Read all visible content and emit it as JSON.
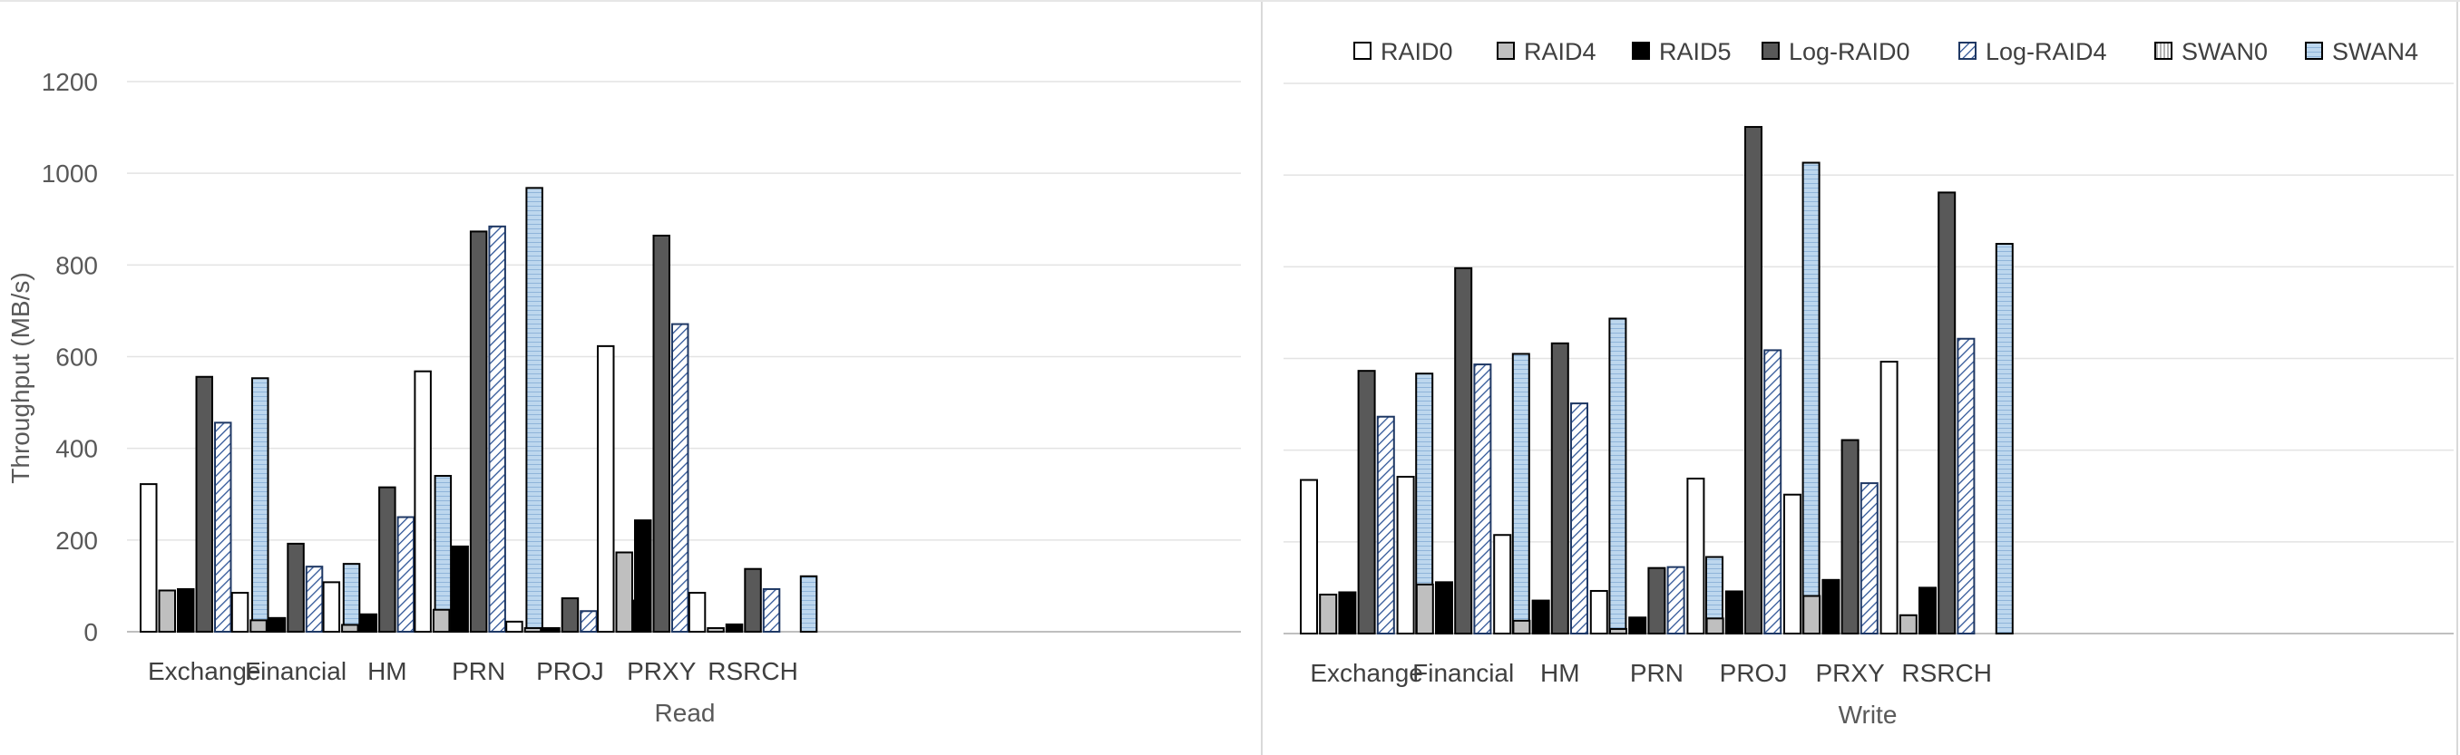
{
  "legend": {
    "items": [
      "RAID0",
      "RAID4",
      "RAID5",
      "Log-RAID0",
      "Log-RAID4",
      "SWAN0",
      "SWAN4"
    ]
  },
  "chart_data": [
    {
      "type": "bar",
      "xlabel": "Read",
      "ylabel": "Throughput (MB/s)",
      "ylim": [
        0,
        1200
      ],
      "yticks": [
        0,
        200,
        400,
        600,
        800,
        1000,
        1200
      ],
      "grid": true,
      "categories": [
        "Exchange",
        "Financial",
        "HM",
        "PRN",
        "PROJ",
        "PRXY",
        "RSRCH"
      ],
      "series": [
        {
          "name": "RAID0",
          "values": [
            322,
            85,
            108,
            568,
            22,
            623,
            85
          ]
        },
        {
          "name": "RAID4",
          "values": [
            90,
            25,
            15,
            48,
            8,
            173,
            8
          ]
        },
        {
          "name": "RAID5",
          "values": [
            93,
            30,
            38,
            186,
            8,
            243,
            16
          ]
        },
        {
          "name": "Log-RAID0",
          "values": [
            556,
            192,
            315,
            873,
            73,
            864,
            137
          ]
        },
        {
          "name": "Log-RAID4",
          "values": [
            456,
            142,
            250,
            884,
            45,
            671,
            93
          ]
        },
        {
          "name": "SWAN0",
          "values": [
            0,
            0,
            0,
            0,
            0,
            0,
            0
          ]
        },
        {
          "name": "SWAN4",
          "values": [
            553,
            148,
            340,
            968,
            68,
            0,
            121
          ]
        }
      ]
    },
    {
      "type": "bar",
      "xlabel": "Write",
      "ylabel": "",
      "ylim": [
        0,
        1200
      ],
      "grid": true,
      "legend_position": "top",
      "categories": [
        "Exchange",
        "Financial",
        "HM",
        "PRN",
        "PROJ",
        "PRXY",
        "RSRCH"
      ],
      "series": [
        {
          "name": "RAID0",
          "values": [
            335,
            342,
            215,
            93,
            338,
            303,
            593
          ]
        },
        {
          "name": "RAID4",
          "values": [
            85,
            107,
            28,
            10,
            33,
            82,
            40
          ]
        },
        {
          "name": "RAID5",
          "values": [
            90,
            112,
            72,
            35,
            92,
            117,
            100
          ]
        },
        {
          "name": "Log-RAID0",
          "values": [
            573,
            797,
            633,
            143,
            1105,
            422,
            962
          ]
        },
        {
          "name": "Log-RAID4",
          "values": [
            473,
            587,
            502,
            145,
            618,
            328,
            643
          ]
        },
        {
          "name": "SWAN0",
          "values": [
            0,
            0,
            0,
            0,
            0,
            0,
            0
          ]
        },
        {
          "name": "SWAN4",
          "values": [
            567,
            610,
            687,
            167,
            1027,
            0,
            850
          ]
        }
      ]
    }
  ]
}
